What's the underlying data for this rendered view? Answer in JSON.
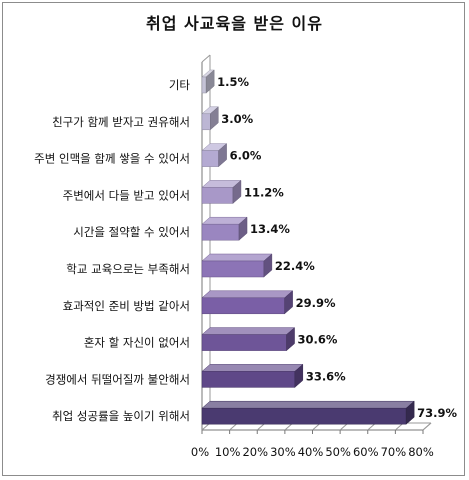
{
  "chart_data": {
    "type": "bar",
    "orientation": "horizontal",
    "title": "취업 사교육을 받은 이유",
    "categories": [
      "기타",
      "친구가 함께 받자고 권유해서",
      "주변 인맥을 함께 쌓을 수 있어서",
      "주변에서 다들 받고 있어서",
      "시간을 절약할 수 있어서",
      "학교 교육으로는 부족해서",
      "효과적인 준비 방법 같아서",
      "혼자 할 자신이 없어서",
      "경쟁에서 뒤떨어질까 불안해서",
      "취업 성공률을 높이기 위해서"
    ],
    "values": [
      1.5,
      3.0,
      6.0,
      11.2,
      13.4,
      22.4,
      29.9,
      30.6,
      33.6,
      73.9
    ],
    "value_labels": [
      "1.5%",
      "3.0%",
      "6.0%",
      "11.2%",
      "13.4%",
      "22.4%",
      "29.9%",
      "30.6%",
      "33.6%",
      "73.9%"
    ],
    "x_ticks": [
      "0%",
      "10%",
      "20%",
      "30%",
      "40%",
      "50%",
      "60%",
      "70%",
      "80%"
    ],
    "xlim": [
      0,
      80
    ],
    "colors": [
      "#c4c2d6",
      "#bcb6d4",
      "#b4aad2",
      "#a898c8",
      "#9a86c0",
      "#8c74b6",
      "#7a5fa6",
      "#6e5598",
      "#5f4888",
      "#4a3a70"
    ],
    "grid": false,
    "legend": "none"
  }
}
